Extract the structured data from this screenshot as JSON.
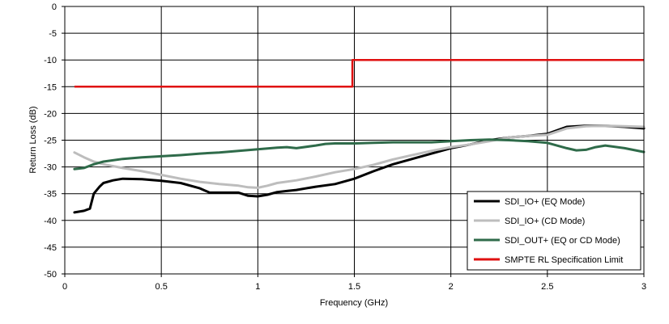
{
  "chart_data": {
    "type": "line",
    "title": "",
    "xlabel": "Frequency (GHz)",
    "ylabel": "Return Loss (dB)",
    "xlim": [
      0,
      3
    ],
    "ylim": [
      -50,
      0
    ],
    "x_ticks": [
      0,
      0.5,
      1,
      1.5,
      2,
      2.5,
      3
    ],
    "x_tick_labels": [
      "0",
      "0.5",
      "1",
      "1.5",
      "2",
      "2.5",
      "3"
    ],
    "y_ticks": [
      0,
      -5,
      -10,
      -15,
      -20,
      -25,
      -30,
      -35,
      -40,
      -45,
      -50
    ],
    "y_tick_labels": [
      "0",
      "-5",
      "-10",
      "-15",
      "-20",
      "-25",
      "-30",
      "-35",
      "-40",
      "-45",
      "-50"
    ],
    "grid": true,
    "legend_position": "bottom-right",
    "series": [
      {
        "name": "SDI_IO+ (EQ Mode)",
        "color": "#000000",
        "x": [
          0.05,
          0.1,
          0.13,
          0.15,
          0.18,
          0.2,
          0.25,
          0.3,
          0.4,
          0.5,
          0.6,
          0.7,
          0.75,
          0.8,
          0.85,
          0.9,
          0.95,
          1.0,
          1.05,
          1.1,
          1.15,
          1.2,
          1.3,
          1.4,
          1.5,
          1.6,
          1.7,
          1.8,
          1.9,
          2.0,
          2.1,
          2.2,
          2.3,
          2.4,
          2.5,
          2.6,
          2.7,
          2.8,
          2.9,
          3.0
        ],
        "y": [
          -38.5,
          -38.2,
          -37.8,
          -35,
          -33.7,
          -33.0,
          -32.5,
          -32.2,
          -32.3,
          -32.6,
          -33.0,
          -34.0,
          -34.8,
          -34.8,
          -34.8,
          -34.8,
          -35.4,
          -35.5,
          -35.2,
          -34.7,
          -34.5,
          -34.3,
          -33.7,
          -33.2,
          -32.2,
          -30.8,
          -29.5,
          -28.5,
          -27.5,
          -26.5,
          -25.8,
          -25.0,
          -24.5,
          -24.2,
          -23.8,
          -22.5,
          -22.3,
          -22.3,
          -22.5,
          -22.8
        ]
      },
      {
        "name": "SDI_IO+ (CD Mode)",
        "color": "#bdbdbd",
        "x": [
          0.05,
          0.1,
          0.15,
          0.2,
          0.3,
          0.4,
          0.5,
          0.6,
          0.7,
          0.8,
          0.9,
          0.95,
          1.0,
          1.05,
          1.1,
          1.2,
          1.3,
          1.4,
          1.5,
          1.6,
          1.7,
          1.8,
          1.9,
          2.0,
          2.1,
          2.2,
          2.3,
          2.4,
          2.5,
          2.6,
          2.7,
          2.8,
          2.9,
          3.0
        ],
        "y": [
          -27.3,
          -28.2,
          -29.0,
          -29.5,
          -30.2,
          -30.8,
          -31.5,
          -32.2,
          -32.8,
          -33.2,
          -33.5,
          -33.8,
          -33.9,
          -33.5,
          -33.0,
          -32.5,
          -31.8,
          -31.0,
          -30.4,
          -29.6,
          -28.6,
          -27.8,
          -27.0,
          -26.3,
          -25.8,
          -25.2,
          -24.5,
          -24.2,
          -24.0,
          -22.8,
          -22.4,
          -22.3,
          -22.4,
          -22.5
        ]
      },
      {
        "name": "SDI_OUT+ (EQ or CD Mode)",
        "color": "#2f6b4a",
        "x": [
          0.05,
          0.1,
          0.15,
          0.2,
          0.3,
          0.4,
          0.5,
          0.6,
          0.7,
          0.8,
          0.9,
          1.0,
          1.1,
          1.15,
          1.2,
          1.3,
          1.35,
          1.4,
          1.5,
          1.6,
          1.7,
          1.8,
          1.9,
          2.0,
          2.1,
          2.2,
          2.3,
          2.4,
          2.5,
          2.6,
          2.65,
          2.7,
          2.75,
          2.8,
          2.9,
          3.0
        ],
        "y": [
          -30.4,
          -30.2,
          -29.5,
          -29.0,
          -28.5,
          -28.2,
          -28.0,
          -27.8,
          -27.5,
          -27.3,
          -27.0,
          -26.7,
          -26.4,
          -26.3,
          -26.5,
          -26.0,
          -25.7,
          -25.6,
          -25.6,
          -25.5,
          -25.4,
          -25.4,
          -25.4,
          -25.2,
          -25.0,
          -24.9,
          -25.0,
          -25.2,
          -25.5,
          -26.5,
          -26.9,
          -26.8,
          -26.3,
          -26.0,
          -26.5,
          -27.2
        ]
      },
      {
        "name": "SMPTE RL Specification Limit",
        "color": "#e01010",
        "x": [
          0.05,
          1.49,
          1.49,
          3.0
        ],
        "y": [
          -15,
          -15,
          -10,
          -10
        ]
      }
    ]
  }
}
